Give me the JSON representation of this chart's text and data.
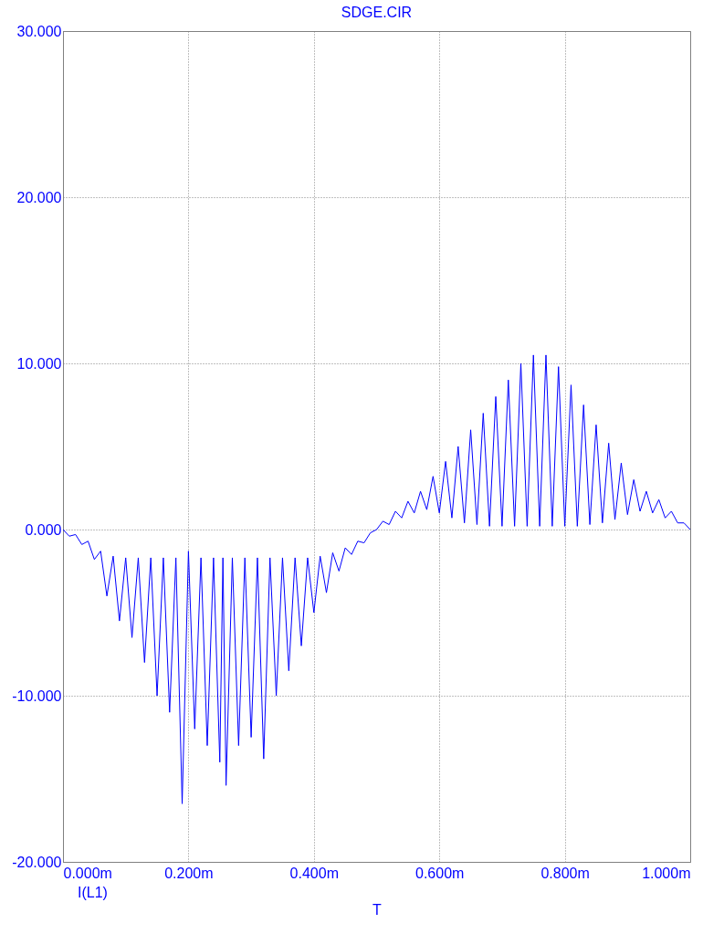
{
  "chart_data": {
    "type": "line",
    "title": "SDGE.CIR",
    "xlabel": "T",
    "x": [
      0,
      0.01,
      0.02,
      0.03,
      0.04,
      0.05,
      0.06,
      0.07,
      0.08,
      0.09,
      0.1,
      0.11,
      0.12,
      0.13,
      0.14,
      0.15,
      0.16,
      0.17,
      0.18,
      0.19,
      0.2,
      0.21,
      0.22,
      0.23,
      0.24,
      0.25,
      0.255,
      0.26,
      0.27,
      0.28,
      0.29,
      0.3,
      0.31,
      0.32,
      0.33,
      0.34,
      0.35,
      0.36,
      0.37,
      0.38,
      0.39,
      0.4,
      0.41,
      0.42,
      0.43,
      0.44,
      0.45,
      0.46,
      0.47,
      0.48,
      0.49,
      0.5,
      0.51,
      0.52,
      0.53,
      0.54,
      0.55,
      0.56,
      0.57,
      0.58,
      0.59,
      0.6,
      0.61,
      0.62,
      0.63,
      0.64,
      0.65,
      0.66,
      0.67,
      0.68,
      0.69,
      0.7,
      0.71,
      0.72,
      0.73,
      0.74,
      0.75,
      0.76,
      0.77,
      0.78,
      0.79,
      0.8,
      0.81,
      0.82,
      0.83,
      0.84,
      0.85,
      0.86,
      0.87,
      0.88,
      0.89,
      0.9,
      0.91,
      0.92,
      0.93,
      0.94,
      0.95,
      0.96,
      0.97,
      0.98,
      0.99,
      1
    ],
    "series": [
      {
        "name": "I(L1)",
        "color": "#0000ff",
        "values": [
          0,
          -0.4,
          -0.3,
          -0.9,
          -0.7,
          -1.8,
          -1.3,
          -4,
          -1.6,
          -5.5,
          -1.7,
          -6.5,
          -1.7,
          -8,
          -1.7,
          -10,
          -1.7,
          -11,
          -1.7,
          -16.5,
          -1.3,
          -12,
          -1.7,
          -13,
          -1.7,
          -14,
          -1.7,
          -15.4,
          -1.7,
          -13,
          -1.7,
          -12.5,
          -1.7,
          -13.8,
          -1.7,
          -10,
          -1.7,
          -8.5,
          -1.7,
          -7,
          -1.7,
          -5,
          -1.6,
          -3.8,
          -1.4,
          -2.5,
          -1.1,
          -1.5,
          -0.7,
          -0.8,
          -0.2,
          0,
          0.5,
          0.3,
          1.1,
          0.7,
          1.7,
          1,
          2.3,
          1.2,
          3.2,
          1,
          4.1,
          0.7,
          5,
          0.4,
          6,
          0.3,
          7,
          0.2,
          8,
          0.2,
          9,
          0.2,
          10,
          0.2,
          10.5,
          0.2,
          10.5,
          0.2,
          9.8,
          0.2,
          8.7,
          0.2,
          7.5,
          0.3,
          6.3,
          0.4,
          5.2,
          0.6,
          4,
          0.9,
          3,
          1.1,
          2.3,
          1,
          1.8,
          0.7,
          1.1,
          0.4,
          0.4,
          0
        ]
      }
    ],
    "xlim": [
      0,
      1
    ],
    "xticks": [
      {
        "value": 0,
        "label": "0.000m"
      },
      {
        "value": 0.2,
        "label": "0.200m"
      },
      {
        "value": 0.4,
        "label": "0.400m"
      },
      {
        "value": 0.6,
        "label": "0.600m"
      },
      {
        "value": 0.8,
        "label": "0.800m"
      },
      {
        "value": 1,
        "label": "1.000m"
      }
    ],
    "ylim": [
      -20,
      30
    ],
    "yticks": [
      {
        "value": -20,
        "label": "-20.000"
      },
      {
        "value": -10,
        "label": "-10.000"
      },
      {
        "value": 0,
        "label": "0.000"
      },
      {
        "value": 10,
        "label": "10.000"
      },
      {
        "value": 20,
        "label": "20.000"
      },
      {
        "value": 30,
        "label": "30.000"
      }
    ],
    "grid": true,
    "legend": "bottom left"
  }
}
